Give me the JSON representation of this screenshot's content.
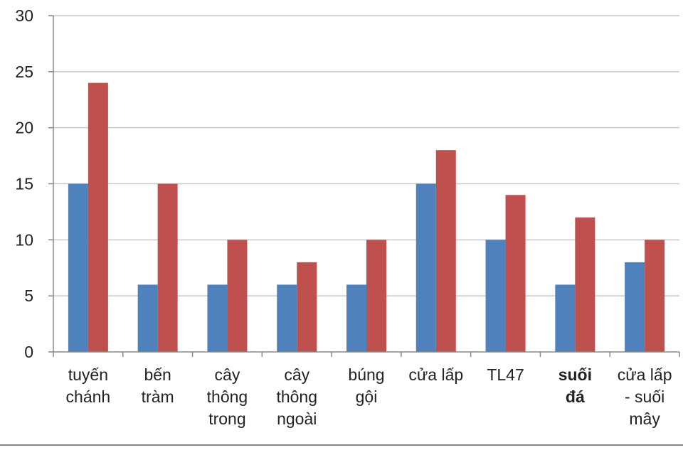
{
  "chart_data": {
    "type": "bar",
    "categories": [
      [
        "tuyến",
        "chánh"
      ],
      [
        "bến",
        "tràm"
      ],
      [
        "cây",
        "thông",
        "trong"
      ],
      [
        "cây",
        "thông",
        "ngoài"
      ],
      [
        "búng",
        "gội"
      ],
      [
        "cửa lấp"
      ],
      [
        "TL47"
      ],
      [
        "suối",
        "đá"
      ],
      [
        "cửa lấp",
        "- suối",
        "mây"
      ]
    ],
    "bold_categories": [
      7
    ],
    "series": [
      {
        "values": [
          15,
          6,
          6,
          6,
          6,
          15,
          10,
          6,
          8
        ],
        "color": "#4F81BD"
      },
      {
        "values": [
          24,
          15,
          10,
          8,
          10,
          18,
          14,
          12,
          10
        ],
        "color": "#C0504D"
      }
    ],
    "yticks": [
      0,
      5,
      10,
      15,
      20,
      25,
      30
    ],
    "ylim": [
      0,
      30
    ],
    "grid": true,
    "title": "",
    "xlabel": "",
    "ylabel": ""
  }
}
